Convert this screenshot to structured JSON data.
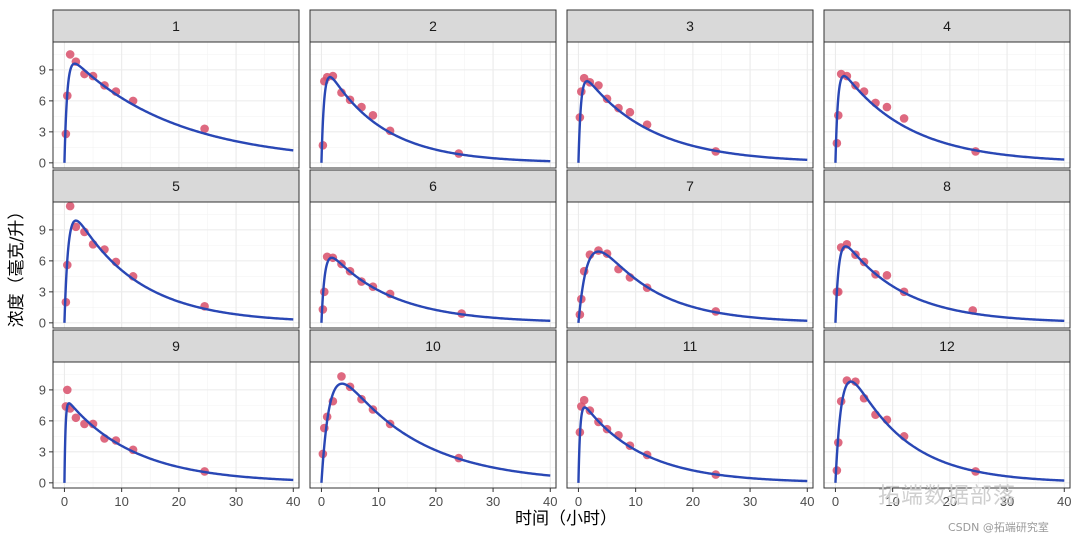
{
  "chart_data": {
    "type": "scatter",
    "facet_layout": "3x4",
    "xlabel": "时间（小时）",
    "ylabel": "浓度（毫克/升）",
    "xlim": [
      -2,
      41
    ],
    "ylim": [
      -0.5,
      11.7
    ],
    "x_ticks": [
      0,
      10,
      20,
      30,
      40
    ],
    "y_ticks": [
      0,
      3,
      6,
      9
    ],
    "grid": true,
    "legend": "none",
    "colors": {
      "points": "#d9546e",
      "fit": "#2947b5",
      "strip_fill": "#d9d9d9",
      "grid": "#ebebeb",
      "panel_border": "#333333"
    },
    "fit_curve": {
      "model": "one-compartment first-order absorption"
    },
    "facets": [
      {
        "label": "1",
        "points": [
          [
            0.25,
            2.8
          ],
          [
            0.5,
            6.5
          ],
          [
            1.0,
            10.5
          ],
          [
            2.0,
            9.8
          ],
          [
            3.5,
            8.6
          ],
          [
            5.0,
            8.4
          ],
          [
            7.0,
            7.5
          ],
          [
            9.0,
            6.9
          ],
          [
            12.0,
            6.0
          ],
          [
            24.5,
            3.3
          ]
        ],
        "fit": {
          "peak": 9.6,
          "tmax": 1.8,
          "ke": 0.055
        }
      },
      {
        "label": "2",
        "points": [
          [
            0.25,
            1.7
          ],
          [
            0.5,
            7.9
          ],
          [
            1.0,
            8.3
          ],
          [
            2.0,
            8.4
          ],
          [
            3.5,
            6.8
          ],
          [
            5.0,
            6.1
          ],
          [
            7.0,
            5.4
          ],
          [
            9.0,
            4.6
          ],
          [
            12.0,
            3.1
          ],
          [
            24.0,
            0.9
          ]
        ],
        "fit": {
          "peak": 8.3,
          "tmax": 1.5,
          "ke": 0.104
        }
      },
      {
        "label": "3",
        "points": [
          [
            0.25,
            4.4
          ],
          [
            0.5,
            6.9
          ],
          [
            1.0,
            8.2
          ],
          [
            2.0,
            7.8
          ],
          [
            3.5,
            7.5
          ],
          [
            5.0,
            6.2
          ],
          [
            7.0,
            5.3
          ],
          [
            9.0,
            4.9
          ],
          [
            12.0,
            3.7
          ],
          [
            24.0,
            1.1
          ]
        ],
        "fit": {
          "peak": 7.9,
          "tmax": 1.5,
          "ke": 0.087
        }
      },
      {
        "label": "4",
        "points": [
          [
            0.25,
            1.9
          ],
          [
            0.5,
            4.6
          ],
          [
            1.0,
            8.6
          ],
          [
            2.0,
            8.4
          ],
          [
            3.5,
            7.5
          ],
          [
            5.0,
            6.9
          ],
          [
            7.0,
            5.8
          ],
          [
            9.0,
            5.4
          ],
          [
            12.0,
            4.3
          ],
          [
            24.5,
            1.1
          ]
        ],
        "fit": {
          "peak": 8.4,
          "tmax": 1.5,
          "ke": 0.086
        }
      },
      {
        "label": "5",
        "points": [
          [
            0.25,
            2.0
          ],
          [
            0.5,
            5.6
          ],
          [
            1.0,
            11.3
          ],
          [
            2.0,
            9.3
          ],
          [
            3.5,
            8.8
          ],
          [
            5.0,
            7.6
          ],
          [
            7.0,
            7.1
          ],
          [
            9.0,
            5.9
          ],
          [
            12.0,
            4.5
          ],
          [
            24.5,
            1.6
          ]
        ],
        "fit": {
          "peak": 9.9,
          "tmax": 2.0,
          "ke": 0.091
        }
      },
      {
        "label": "6",
        "points": [
          [
            0.25,
            1.3
          ],
          [
            0.5,
            3.0
          ],
          [
            1.0,
            6.4
          ],
          [
            2.0,
            6.3
          ],
          [
            3.5,
            5.7
          ],
          [
            5.0,
            5.0
          ],
          [
            7.0,
            4.0
          ],
          [
            9.0,
            3.5
          ],
          [
            12.0,
            2.8
          ],
          [
            24.5,
            0.9
          ]
        ],
        "fit": {
          "peak": 6.3,
          "tmax": 1.8,
          "ke": 0.092
        }
      },
      {
        "label": "7",
        "points": [
          [
            0.25,
            0.8
          ],
          [
            0.5,
            2.3
          ],
          [
            1.0,
            5.0
          ],
          [
            2.0,
            6.6
          ],
          [
            3.5,
            7.0
          ],
          [
            5.0,
            6.7
          ],
          [
            7.0,
            5.2
          ],
          [
            9.0,
            4.4
          ],
          [
            12.0,
            3.4
          ],
          [
            24.0,
            1.1
          ]
        ],
        "fit": {
          "peak": 6.9,
          "tmax": 3.5,
          "ke": 0.102
        }
      },
      {
        "label": "8",
        "points": [
          [
            0.25,
            3.0
          ],
          [
            0.5,
            3.0
          ],
          [
            1.0,
            7.3
          ],
          [
            2.0,
            7.6
          ],
          [
            3.5,
            6.6
          ],
          [
            5.0,
            5.9
          ],
          [
            7.0,
            4.7
          ],
          [
            9.0,
            4.6
          ],
          [
            12.0,
            3.0
          ],
          [
            24.0,
            1.2
          ]
        ],
        "fit": {
          "peak": 7.4,
          "tmax": 1.8,
          "ke": 0.097
        }
      },
      {
        "label": "9",
        "points": [
          [
            0.25,
            7.4
          ],
          [
            0.5,
            9.0
          ],
          [
            1.0,
            7.2
          ],
          [
            2.0,
            6.3
          ],
          [
            3.5,
            5.7
          ],
          [
            5.0,
            5.7
          ],
          [
            7.0,
            4.3
          ],
          [
            9.0,
            4.1
          ],
          [
            12.0,
            3.2
          ],
          [
            24.5,
            1.1
          ]
        ],
        "fit": {
          "peak": 7.7,
          "tmax": 0.8,
          "ke": 0.085
        }
      },
      {
        "label": "10",
        "points": [
          [
            0.25,
            2.8
          ],
          [
            0.5,
            5.3
          ],
          [
            1.0,
            6.4
          ],
          [
            2.0,
            7.9
          ],
          [
            3.5,
            10.3
          ],
          [
            5.0,
            9.3
          ],
          [
            7.0,
            8.1
          ],
          [
            9.0,
            7.1
          ],
          [
            12.0,
            5.7
          ],
          [
            24.0,
            2.4
          ]
        ],
        "fit": {
          "peak": 9.6,
          "tmax": 3.6,
          "ke": 0.075
        }
      },
      {
        "label": "11",
        "points": [
          [
            0.25,
            4.9
          ],
          [
            0.5,
            7.4
          ],
          [
            1.0,
            8.0
          ],
          [
            2.0,
            7.0
          ],
          [
            3.5,
            5.9
          ],
          [
            5.0,
            5.2
          ],
          [
            7.0,
            4.6
          ],
          [
            9.0,
            3.6
          ],
          [
            12.0,
            2.7
          ],
          [
            24.0,
            0.8
          ]
        ],
        "fit": {
          "peak": 7.3,
          "tmax": 1.1,
          "ke": 0.097
        }
      },
      {
        "label": "12",
        "points": [
          [
            0.25,
            1.2
          ],
          [
            0.5,
            3.9
          ],
          [
            1.0,
            7.9
          ],
          [
            2.0,
            9.9
          ],
          [
            3.5,
            9.8
          ],
          [
            5.0,
            8.2
          ],
          [
            7.0,
            6.6
          ],
          [
            9.0,
            6.1
          ],
          [
            12.0,
            4.5
          ],
          [
            24.5,
            1.1
          ]
        ],
        "fit": {
          "peak": 9.8,
          "tmax": 2.7,
          "ke": 0.105
        }
      }
    ]
  },
  "watermark": {
    "main": "拓端数据部落",
    "sub": "CSDN @拓端研究室"
  }
}
